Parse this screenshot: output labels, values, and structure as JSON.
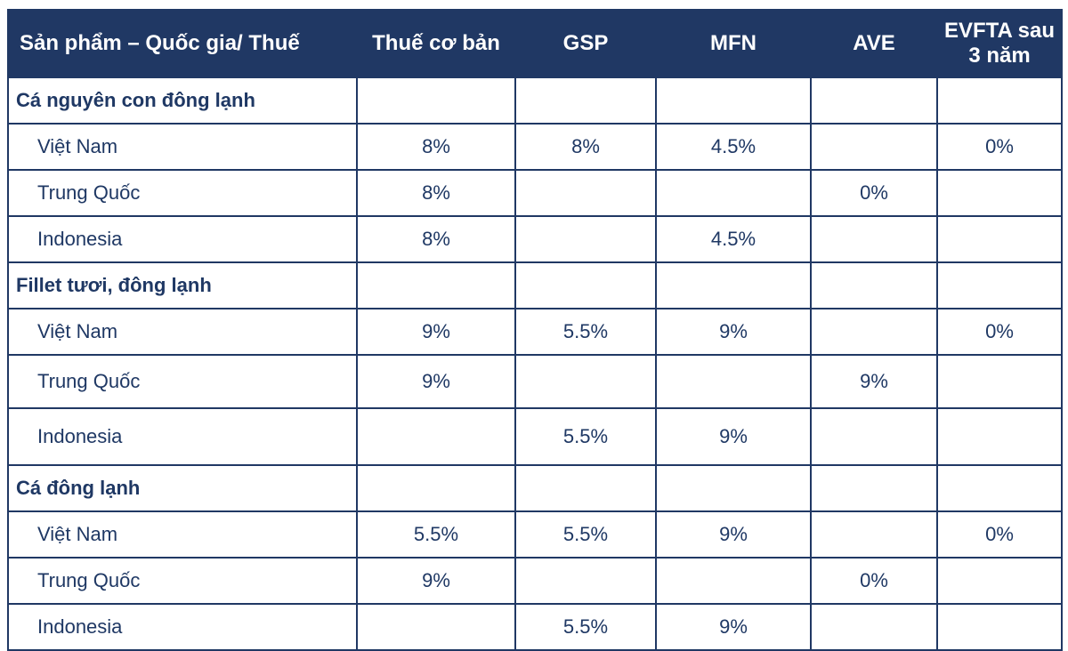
{
  "chart_data": {
    "type": "table",
    "columns": [
      "Sản phẩm – Quốc gia/ Thuế",
      "Thuế cơ bản",
      "GSP",
      "MFN",
      "AVE",
      "EVFTA sau 3 năm"
    ],
    "rows": [
      {
        "label": "Cá nguyên con đông lạnh",
        "row_type": "section",
        "values": [
          "",
          "",
          "",
          "",
          ""
        ]
      },
      {
        "label": "Việt Nam",
        "row_type": "country",
        "values": [
          "8%",
          "8%",
          "4.5%",
          "",
          "0%"
        ]
      },
      {
        "label": "Trung Quốc",
        "row_type": "country",
        "values": [
          "8%",
          "",
          "",
          "0%",
          ""
        ]
      },
      {
        "label": "Indonesia",
        "row_type": "country",
        "values": [
          "8%",
          "",
          "4.5%",
          "",
          ""
        ]
      },
      {
        "label": "Fillet tươi, đông lạnh",
        "row_type": "section",
        "values": [
          "",
          "",
          "",
          "",
          ""
        ]
      },
      {
        "label": "Việt Nam",
        "row_type": "country",
        "values": [
          "9%",
          "5.5%",
          "9%",
          "",
          "0%"
        ]
      },
      {
        "label": "Trung Quốc",
        "row_type": "country",
        "values": [
          "9%",
          "",
          "",
          "9%",
          ""
        ]
      },
      {
        "label": "Indonesia",
        "row_type": "country",
        "values": [
          "",
          "5.5%",
          "9%",
          "",
          ""
        ]
      },
      {
        "label": "Cá đông lạnh",
        "row_type": "section",
        "values": [
          "",
          "",
          "",
          "",
          ""
        ]
      },
      {
        "label": "Việt Nam",
        "row_type": "country",
        "values": [
          "5.5%",
          "5.5%",
          "9%",
          "",
          "0%"
        ]
      },
      {
        "label": "Trung Quốc",
        "row_type": "country",
        "values": [
          "9%",
          "",
          "",
          "0%",
          ""
        ]
      },
      {
        "label": "Indonesia",
        "row_type": "country",
        "values": [
          "",
          "5.5%",
          "9%",
          "",
          ""
        ]
      }
    ]
  },
  "colors": {
    "header_bg": "#203864",
    "header_text": "#ffffff",
    "body_text": "#1f3864",
    "border": "#203864",
    "background": "#ffffff"
  }
}
